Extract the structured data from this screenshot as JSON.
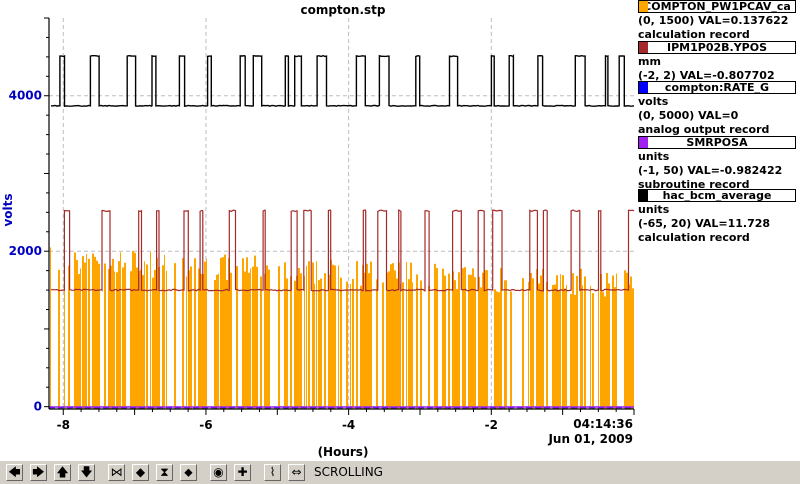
{
  "chart_data": {
    "type": "line",
    "title": "compton.stp",
    "xlabel": "(Hours)",
    "ylabel": "volts",
    "xlim": [
      -8.2,
      0
    ],
    "ylim": [
      -30,
      5000
    ],
    "x_ticks": [
      -8,
      -6,
      -4,
      -2
    ],
    "x_tick_labels": [
      "-8",
      "-6",
      "-4",
      "-2"
    ],
    "y_ticks": [
      0,
      2000,
      4000
    ],
    "y_tick_labels": [
      "0",
      "2000",
      "4000"
    ],
    "time_label": "04:14:36",
    "date_label": "Jun 01, 2009",
    "grid": true,
    "series": [
      {
        "name": "COMPTON_PW1PCAV_ca",
        "color": "#ffa500",
        "kind": "fill-bursts",
        "top_level": 2050,
        "base": 0
      },
      {
        "name": "IPM1P02B.YPOS",
        "color": "#a52a2a",
        "kind": "toggle",
        "levels": [
          1500,
          2520
        ]
      },
      {
        "name": "compton:RATE_G",
        "color": "#0000ff",
        "kind": "flat",
        "value": -10
      },
      {
        "name": "SMRPOSA",
        "color": "#a020f0",
        "kind": "flat",
        "value": -5
      },
      {
        "name": "hac_bcm_average",
        "color": "#000000",
        "kind": "toggle",
        "levels": [
          3870,
          4510
        ]
      }
    ]
  },
  "legend": [
    {
      "name": "COMPTON_PW1PCAV_ca",
      "color": "#ffa500",
      "units": "",
      "range": "(0, 1500) VAL=0.137622",
      "record": "calculation record"
    },
    {
      "name": "IPM1P02B.YPOS",
      "color": "#a52a2a",
      "units": "mm",
      "range": "(-2, 2) VAL=-0.807702",
      "record": ""
    },
    {
      "name": "compton:RATE_G",
      "color": "#0000ff",
      "units": "volts",
      "range": "(0, 5000) VAL=0",
      "record": "analog output record"
    },
    {
      "name": "SMRPOSA",
      "color": "#a020f0",
      "units": "units",
      "range": "(-1, 50) VAL=-0.982422",
      "record": "subroutine record"
    },
    {
      "name": "hac_bcm_average",
      "color": "#000000",
      "units": "units",
      "range": "(-65, 20) VAL=11.728",
      "record": "calculation record"
    }
  ],
  "toolbar": {
    "status": "SCROLLING",
    "buttons": [
      {
        "name": "scroll-left-button",
        "glyph": "🡄"
      },
      {
        "name": "scroll-right-button",
        "glyph": "🡆"
      },
      {
        "name": "scroll-up-button",
        "glyph": "🡅"
      },
      {
        "name": "scroll-down-button",
        "glyph": "🡇"
      },
      {
        "name": "zoom-in-x-button",
        "glyph": "⋈"
      },
      {
        "name": "zoom-out-x-button",
        "glyph": "◆"
      },
      {
        "name": "zoom-in-y-button",
        "glyph": "⧗"
      },
      {
        "name": "zoom-out-y-button",
        "glyph": "⬥"
      },
      {
        "name": "record-button",
        "glyph": "◉"
      },
      {
        "name": "add-button",
        "glyph": "✚"
      },
      {
        "name": "pan-button",
        "glyph": "⌇"
      },
      {
        "name": "scroll-mode-button",
        "glyph": "⇔"
      }
    ]
  }
}
